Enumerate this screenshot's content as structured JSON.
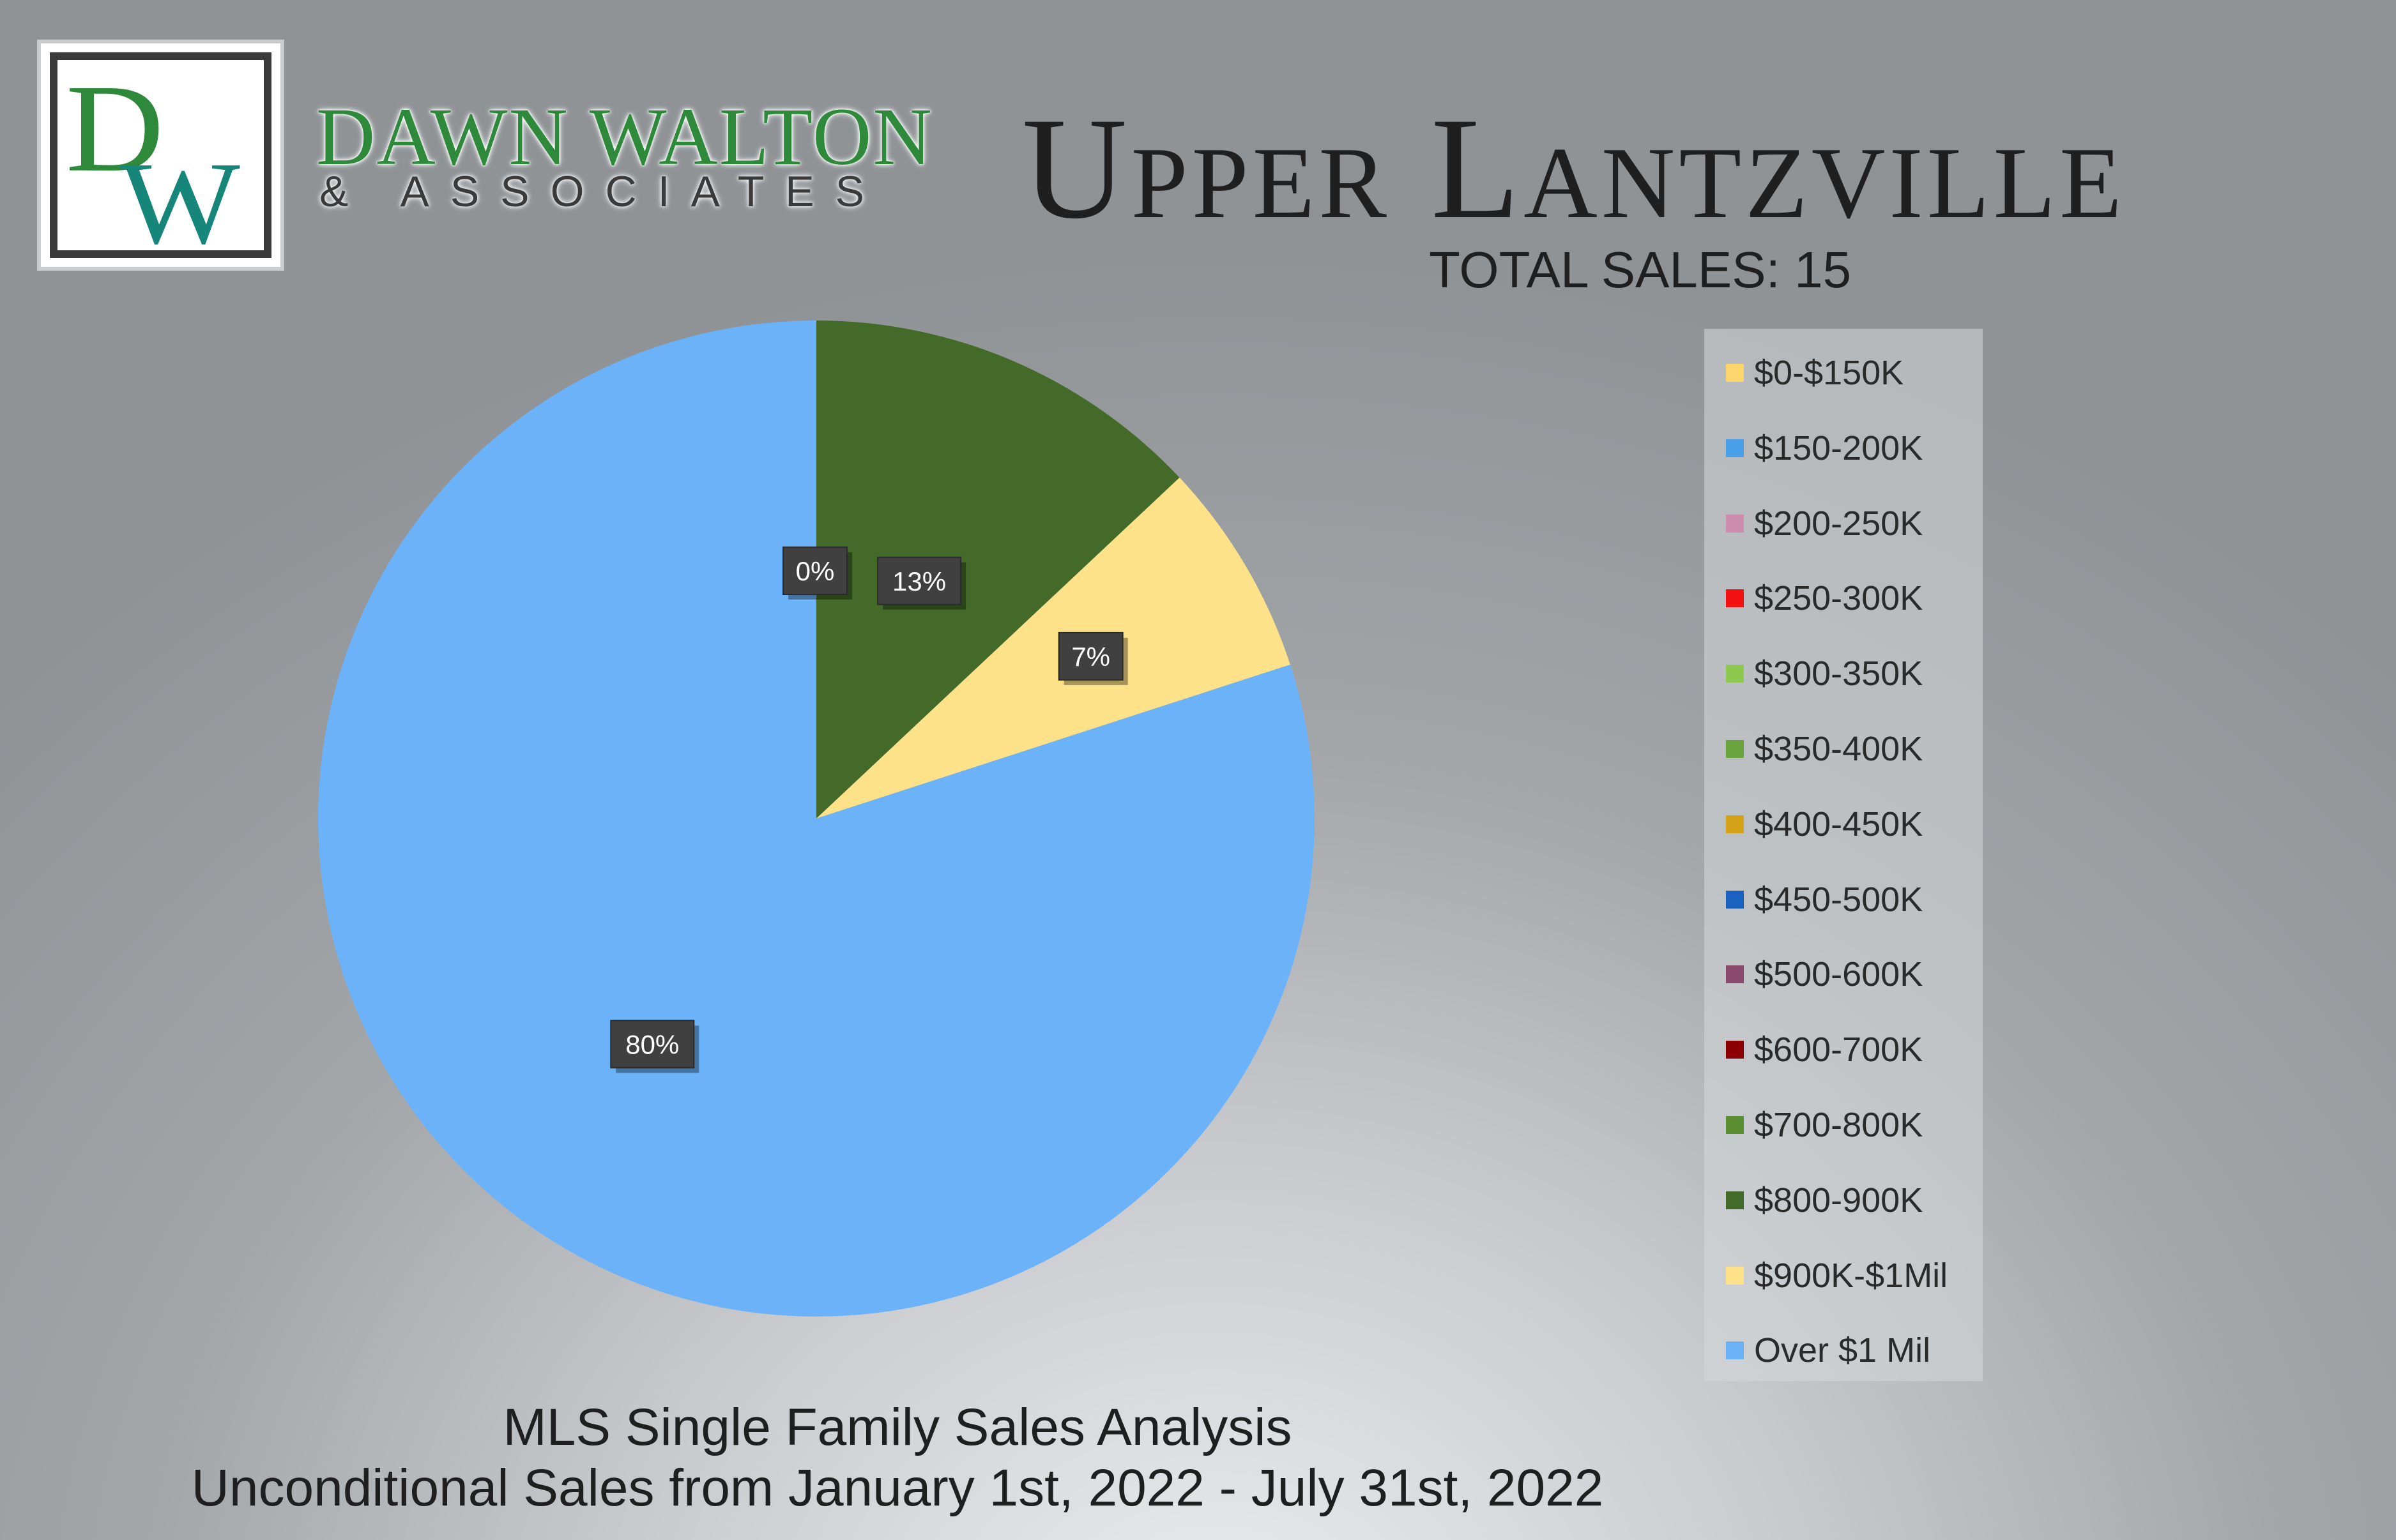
{
  "brand": {
    "name": "DAWN WALTON",
    "tagline": "& ASSOCIATES",
    "monogram": "DW",
    "colors": {
      "green": "#2e8a3a",
      "teal": "#16867a"
    }
  },
  "header": {
    "title": "Upper Lantzville",
    "total_sales": "TOTAL SALES: 15"
  },
  "footer": {
    "line1": "MLS Single Family Sales Analysis",
    "line2": "Unconditional Sales from January 1st, 2022 - July 31st, 2022"
  },
  "chart_data": {
    "type": "pie",
    "legend_position": "right",
    "categories": [
      "$0-$150K",
      "$150-200K",
      "$200-250K",
      "$250-300K",
      "$300-350K",
      "$350-400K",
      "$400-450K",
      "$450-500K",
      "$500-600K",
      "$600-700K",
      "$700-800K",
      "$800-900K",
      "$900K-$1Mil",
      "Over $1 Mil"
    ],
    "values": [
      0,
      0,
      0,
      0,
      0,
      0,
      0,
      0,
      0,
      0,
      0,
      13,
      7,
      80
    ],
    "colors": [
      "#fcd56b",
      "#4a9fe9",
      "#cc8cae",
      "#f21010",
      "#8ec84e",
      "#6ba33e",
      "#d4a216",
      "#1b62c0",
      "#8a4a6e",
      "#8b0000",
      "#5b8e31",
      "#436a29",
      "#fde289",
      "#6bb2f9"
    ],
    "data_labels": [
      {
        "text": "0%",
        "category": "$700-800K"
      },
      {
        "text": "13%",
        "category": "$800-900K"
      },
      {
        "text": "7%",
        "category": "$900K-$1Mil"
      },
      {
        "text": "80%",
        "category": "Over $1 Mil"
      }
    ]
  }
}
